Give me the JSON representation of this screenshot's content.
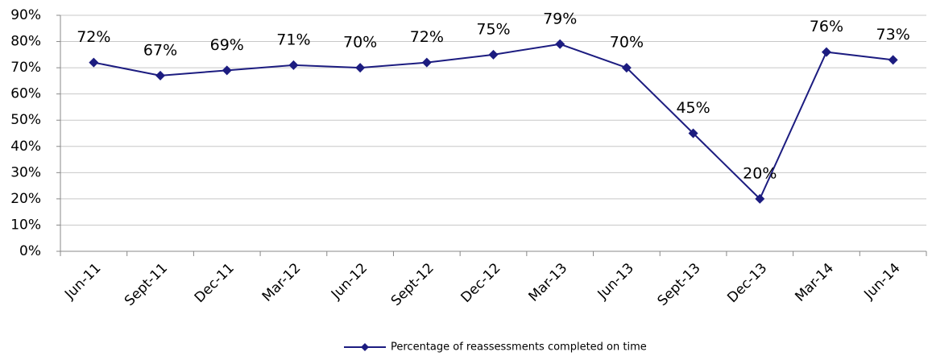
{
  "chart_data": {
    "type": "line",
    "categories": [
      "Jun-11",
      "Sept-11",
      "Dec-11",
      "Mar-12",
      "Jun-12",
      "Sept-12",
      "Dec-12",
      "Mar-13",
      "Jun-13",
      "Sept-13",
      "Dec-13",
      "Mar-14",
      "Jun-14"
    ],
    "series": [
      {
        "name": "Percentage of reassessments completed on time",
        "color": "#1c1c80",
        "values": [
          72,
          67,
          69,
          71,
          70,
          72,
          75,
          79,
          70,
          45,
          20,
          76,
          73
        ],
        "value_labels": [
          "72%",
          "67%",
          "69%",
          "71%",
          "70%",
          "72%",
          "75%",
          "79%",
          "70%",
          "45%",
          "20%",
          "76%",
          "73%"
        ]
      }
    ],
    "ylim": [
      0,
      90
    ],
    "yticks": [
      {
        "value": 0,
        "label": "0%"
      },
      {
        "value": 10,
        "label": "10%"
      },
      {
        "value": 20,
        "label": "20%"
      },
      {
        "value": 30,
        "label": "30%"
      },
      {
        "value": 40,
        "label": "40%"
      },
      {
        "value": 50,
        "label": "50%"
      },
      {
        "value": 60,
        "label": "60%"
      },
      {
        "value": 70,
        "label": "70%"
      },
      {
        "value": 80,
        "label": "80%"
      },
      {
        "value": 90,
        "label": "90%"
      }
    ],
    "grid": true,
    "legend": "bottom"
  }
}
